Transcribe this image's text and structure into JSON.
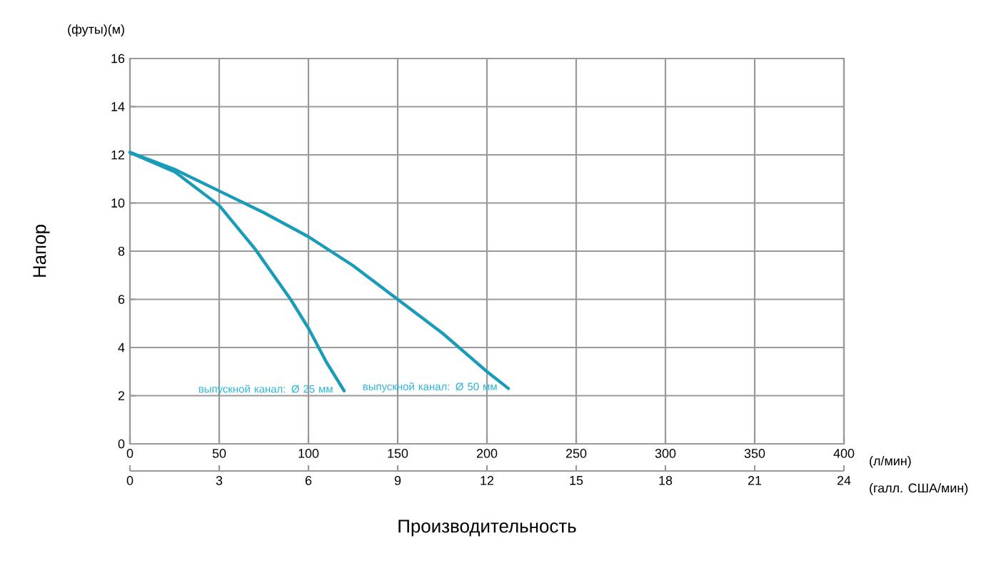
{
  "chart_data": {
    "type": "line",
    "ylabel": "Напор",
    "xlabel": "(л/мин)",
    "x2label": "(галл. США/мин)",
    "xlim": [
      0,
      400
    ],
    "xticks": [
      0,
      50,
      100,
      150,
      200,
      250,
      300,
      350,
      400
    ],
    "x2lim": [
      0,
      24
    ],
    "x2ticks": [
      0,
      3,
      6,
      9,
      12,
      15,
      18,
      21,
      24
    ],
    "ylim": [
      0,
      16
    ],
    "yticks": [
      0,
      2,
      4,
      6,
      8,
      10,
      12,
      14,
      16
    ],
    "grid": true,
    "marker": "none",
    "line_style": "solid",
    "series": [
      {
        "color": "#1a9cb8",
        "x": [
          0,
          25,
          50,
          70,
          90,
          100,
          110,
          120
        ],
        "values": [
          12.1,
          11.3,
          9.9,
          8.1,
          6.0,
          4.8,
          3.4,
          2.2
        ]
      },
      {
        "color": "#1a9cb8",
        "x": [
          0,
          25,
          50,
          75,
          100,
          125,
          150,
          175,
          200,
          212
        ],
        "values": [
          12.1,
          11.4,
          10.5,
          9.6,
          8.6,
          7.4,
          6.0,
          4.6,
          3.0,
          2.3
        ]
      }
    ],
    "annotations": [
      "(футы)(м)",
      "Производительность",
      {
        "text": "выпускной канал: Ø 25 мм",
        "x": 120,
        "y": 2.2
      },
      {
        "text": "выпускной канал: Ø 50 мм",
        "x": 212,
        "y": 2.3
      }
    ]
  }
}
